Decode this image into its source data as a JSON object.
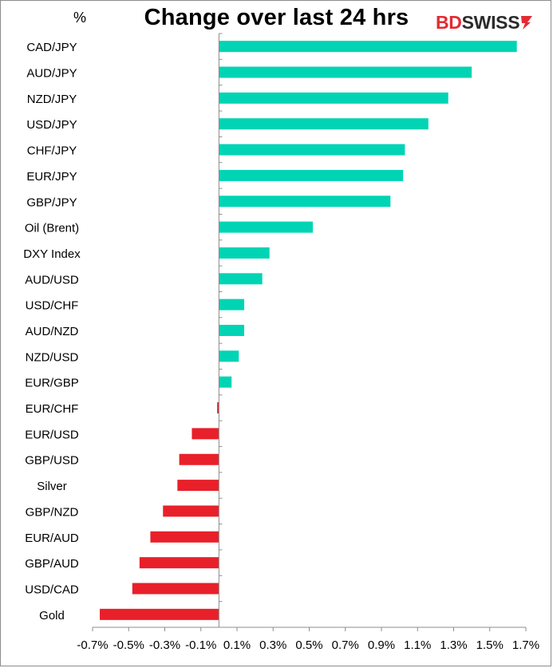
{
  "chart_data": {
    "type": "bar",
    "orientation": "horizontal",
    "title": "Change over last 24 hrs",
    "unit_label": "%",
    "categories": [
      "CAD/JPY",
      "AUD/JPY",
      "NZD/JPY",
      "USD/JPY",
      "CHF/JPY",
      "EUR/JPY",
      "GBP/JPY",
      "Oil (Brent)",
      "DXY Index",
      "AUD/USD",
      "USD/CHF",
      "AUD/NZD",
      "NZD/USD",
      "EUR/GBP",
      "EUR/CHF",
      "EUR/USD",
      "GBP/USD",
      "Silver",
      "GBP/NZD",
      "EUR/AUD",
      "GBP/AUD",
      "USD/CAD",
      "Gold"
    ],
    "values": [
      1.65,
      1.4,
      1.27,
      1.16,
      1.03,
      1.02,
      0.95,
      0.52,
      0.28,
      0.24,
      0.14,
      0.14,
      0.11,
      0.07,
      -0.01,
      -0.15,
      -0.22,
      -0.23,
      -0.31,
      -0.38,
      -0.44,
      -0.48,
      -0.66
    ],
    "xlim": [
      -0.7,
      1.7
    ],
    "xticks": [
      "-0.7%",
      "-0.5%",
      "-0.3%",
      "-0.1%",
      "0.1%",
      "0.3%",
      "0.5%",
      "0.7%",
      "0.9%",
      "1.1%",
      "1.3%",
      "1.5%",
      "1.7%"
    ],
    "colors": {
      "positive": "#00d4b4",
      "negative": "#e8202a"
    },
    "grid": false,
    "legend": "none"
  },
  "brand": {
    "prefix": "BD",
    "suffix": "SWISS",
    "primary_color": "#e32b32"
  }
}
